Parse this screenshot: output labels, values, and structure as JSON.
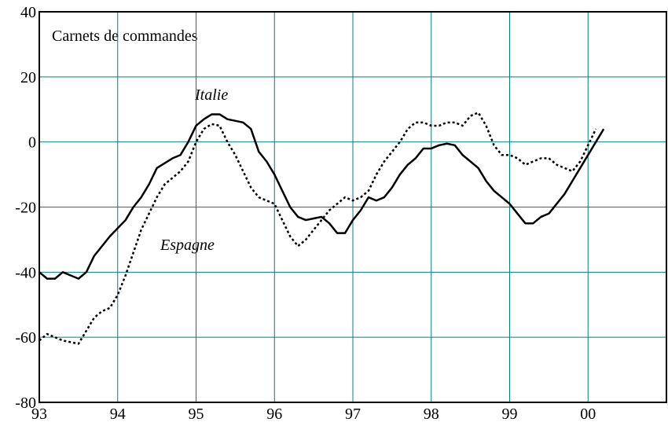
{
  "chart_data": {
    "type": "line",
    "title": "Carnets de commandes",
    "xlim": [
      1993,
      2001
    ],
    "xticks": [
      {
        "value": 1993,
        "label": "93"
      },
      {
        "value": 1994,
        "label": "94"
      },
      {
        "value": 1995,
        "label": "95"
      },
      {
        "value": 1996,
        "label": "96"
      },
      {
        "value": 1997,
        "label": "97"
      },
      {
        "value": 1998,
        "label": "98"
      },
      {
        "value": 1999,
        "label": "99"
      },
      {
        "value": 2000,
        "label": "00"
      }
    ],
    "ylim": [
      -80,
      40
    ],
    "yticks": [
      -80,
      -60,
      -40,
      -20,
      0,
      20,
      40
    ],
    "grid": true,
    "series": [
      {
        "name": "Italie",
        "color": "#000000",
        "style": "solid",
        "x": [
          1993.0,
          1993.1,
          1993.2,
          1993.3,
          1993.4,
          1993.5,
          1993.6,
          1993.7,
          1993.9,
          1994.1,
          1994.2,
          1994.3,
          1994.4,
          1994.5,
          1994.7,
          1994.8,
          1994.9,
          1995.0,
          1995.1,
          1995.2,
          1995.3,
          1995.4,
          1995.6,
          1995.7,
          1995.8,
          1995.9,
          1996.0,
          1996.1,
          1996.2,
          1996.3,
          1996.4,
          1996.5,
          1996.6,
          1996.7,
          1996.8,
          1996.9,
          1997.0,
          1997.1,
          1997.2,
          1997.3,
          1997.4,
          1997.5,
          1997.6,
          1997.7,
          1997.8,
          1997.9,
          1998.0,
          1998.1,
          1998.2,
          1998.3,
          1998.4,
          1998.5,
          1998.6,
          1998.7,
          1998.8,
          1998.9,
          1999.0,
          1999.1,
          1999.2,
          1999.3,
          1999.4,
          1999.5,
          1999.6,
          1999.7,
          1999.8,
          1999.9,
          2000.0,
          2000.1,
          2000.2
        ],
        "values": [
          -40,
          -42,
          -42,
          -40,
          -41,
          -42,
          -40,
          -35,
          -29,
          -24,
          -20,
          -17,
          -13,
          -8,
          -5,
          -4,
          0,
          5,
          7,
          8.5,
          8.5,
          7,
          6,
          4,
          -3,
          -6,
          -10,
          -15,
          -20,
          -23,
          -24,
          -23.5,
          -23,
          -25,
          -28,
          -28,
          -24,
          -21,
          -17,
          -18,
          -17,
          -14,
          -10,
          -7,
          -5,
          -2,
          -2,
          -1,
          -0.5,
          -1,
          -4,
          -6,
          -8,
          -12,
          -15,
          -17,
          -19,
          -22,
          -25,
          -25,
          -23,
          -22,
          -19,
          -16,
          -12,
          -8,
          -4,
          0,
          4
        ]
      },
      {
        "name": "Espagne",
        "color": "#000000",
        "style": "dotted",
        "x": [
          1993.0,
          1993.1,
          1993.2,
          1993.3,
          1993.5,
          1993.6,
          1993.7,
          1993.8,
          1993.9,
          1994.0,
          1994.1,
          1994.2,
          1994.3,
          1994.4,
          1994.5,
          1994.6,
          1994.7,
          1994.8,
          1994.9,
          1995.0,
          1995.1,
          1995.2,
          1995.3,
          1995.4,
          1995.5,
          1995.6,
          1995.7,
          1995.8,
          1995.9,
          1996.0,
          1996.1,
          1996.2,
          1996.3,
          1996.4,
          1996.5,
          1996.6,
          1996.7,
          1996.8,
          1996.9,
          1997.0,
          1997.1,
          1997.2,
          1997.3,
          1997.4,
          1997.5,
          1997.6,
          1997.7,
          1997.8,
          1997.9,
          1998.0,
          1998.1,
          1998.2,
          1998.3,
          1998.4,
          1998.5,
          1998.6,
          1998.7,
          1998.8,
          1998.9,
          1999.0,
          1999.1,
          1999.2,
          1999.3,
          1999.4,
          1999.5,
          1999.6,
          1999.7,
          1999.8,
          1999.9,
          2000.0,
          2000.1
        ],
        "values": [
          -61,
          -59,
          -60,
          -61,
          -62,
          -58,
          -54,
          -52,
          -51,
          -47,
          -41,
          -34,
          -27,
          -22,
          -17,
          -13,
          -11,
          -9,
          -6,
          0,
          4,
          5.5,
          5,
          0,
          -4,
          -9,
          -14,
          -17,
          -18,
          -19,
          -24,
          -29,
          -32,
          -30,
          -27,
          -24,
          -21,
          -19,
          -17,
          -18,
          -17,
          -15,
          -10,
          -6,
          -3,
          0,
          4,
          6,
          6,
          5,
          5,
          6,
          6,
          5,
          8,
          9,
          5,
          -1,
          -4,
          -4,
          -5,
          -7,
          -6,
          -5,
          -5,
          -7,
          -8,
          -9,
          -6,
          -1,
          4
        ]
      }
    ]
  }
}
